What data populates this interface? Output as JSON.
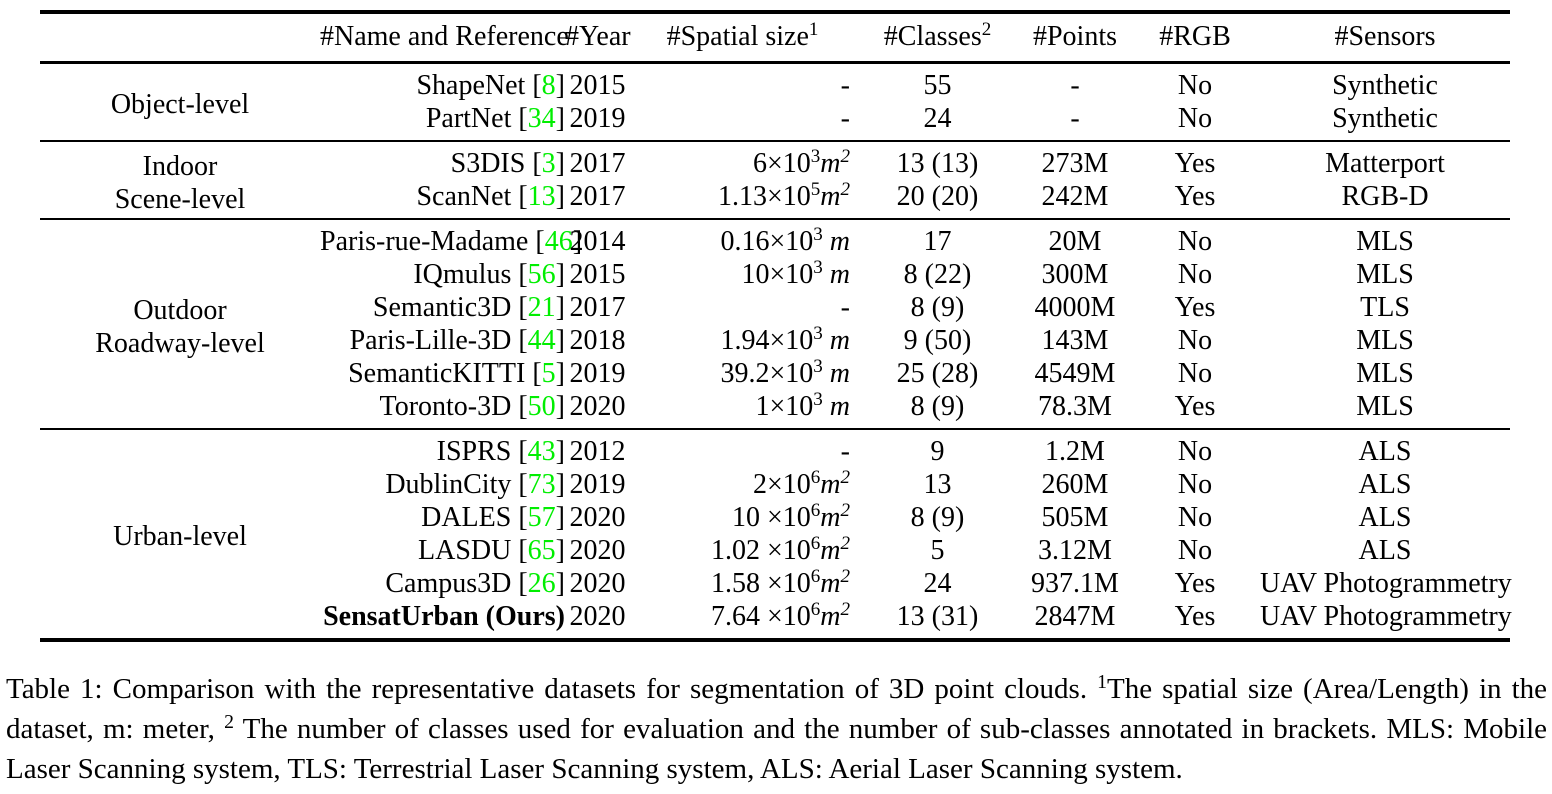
{
  "accent_colors": {
    "citation_green": "#00ee00",
    "text": "#000000",
    "background": "#ffffff"
  },
  "table": {
    "citation": {
      "open": " [",
      "close": "]"
    },
    "columns": [
      {
        "key": "category",
        "label": ""
      },
      {
        "key": "name",
        "label": "#Name and Reference"
      },
      {
        "key": "year",
        "label": "#Year"
      },
      {
        "key": "spatial",
        "label": "#Spatial size",
        "sup": "1"
      },
      {
        "key": "classes",
        "label": "#Classes",
        "sup": "2"
      },
      {
        "key": "points",
        "label": "#Points"
      },
      {
        "key": "rgb",
        "label": "#RGB"
      },
      {
        "key": "sensors",
        "label": "#Sensors"
      }
    ],
    "groups": [
      {
        "category_lines": [
          "Object-level"
        ],
        "rows": [
          {
            "name": "ShapeNet",
            "ref": "8",
            "year": "2015",
            "spatial": {
              "dash": "-"
            },
            "classes": "55",
            "points": "-",
            "rgb": "No",
            "sensors": "Synthetic"
          },
          {
            "name": "PartNet",
            "ref": "34",
            "year": "2019",
            "spatial": {
              "dash": "-"
            },
            "classes": "24",
            "points": "-",
            "rgb": "No",
            "sensors": "Synthetic"
          }
        ]
      },
      {
        "category_lines": [
          "Indoor",
          "Scene-level"
        ],
        "rows": [
          {
            "name": "S3DIS",
            "ref": "3",
            "year": "2017",
            "spatial": {
              "coeff": "6×10",
              "exp": "3",
              "unit": "m",
              "unit_sup": "2"
            },
            "classes": "13 (13)",
            "points": "273M",
            "rgb": "Yes",
            "sensors": "Matterport"
          },
          {
            "name": "ScanNet",
            "ref": "13",
            "year": "2017",
            "spatial": {
              "coeff": "1.13×10",
              "exp": "5",
              "unit": "m",
              "unit_sup": "2"
            },
            "classes": "20 (20)",
            "points": "242M",
            "rgb": "Yes",
            "sensors": "RGB-D"
          }
        ]
      },
      {
        "category_lines": [
          "Outdoor",
          "Roadway-level"
        ],
        "rows": [
          {
            "name": "Paris-rue-Madame",
            "ref": "46",
            "year": "2014",
            "spatial": {
              "coeff": "0.16×10",
              "exp": "3",
              "unit": " m"
            },
            "classes": "17",
            "points": "20M",
            "rgb": "No",
            "sensors": "MLS"
          },
          {
            "name": "IQmulus",
            "ref": "56",
            "year": "2015",
            "spatial": {
              "coeff": "10×10",
              "exp": "3",
              "unit": " m"
            },
            "classes": "8 (22)",
            "points": "300M",
            "rgb": "No",
            "sensors": "MLS"
          },
          {
            "name": "Semantic3D",
            "ref": "21",
            "year": "2017",
            "spatial": {
              "dash": "-"
            },
            "classes": "8 (9)",
            "points": "4000M",
            "rgb": "Yes",
            "sensors": "TLS"
          },
          {
            "name": "Paris-Lille-3D",
            "ref": "44",
            "year": "2018",
            "spatial": {
              "coeff": "1.94×10",
              "exp": "3",
              "unit": " m"
            },
            "classes": "9 (50)",
            "points": "143M",
            "rgb": "No",
            "sensors": "MLS"
          },
          {
            "name": "SemanticKITTI",
            "ref": "5",
            "year": "2019",
            "spatial": {
              "coeff": "39.2×10",
              "exp": "3",
              "unit": " m"
            },
            "classes": "25 (28)",
            "points": "4549M",
            "rgb": "No",
            "sensors": "MLS"
          },
          {
            "name": "Toronto-3D",
            "ref": "50",
            "year": "2020",
            "spatial": {
              "coeff": "1×10",
              "exp": "3",
              "unit": " m"
            },
            "classes": "8 (9)",
            "points": "78.3M",
            "rgb": "Yes",
            "sensors": "MLS"
          }
        ]
      },
      {
        "category_lines": [
          "Urban-level"
        ],
        "rows": [
          {
            "name": "ISPRS",
            "ref": "43",
            "year": "2012",
            "spatial": {
              "dash": "-"
            },
            "classes": "9",
            "points": "1.2M",
            "rgb": "No",
            "sensors": "ALS"
          },
          {
            "name": "DublinCity",
            "ref": "73",
            "year": "2019",
            "spatial": {
              "coeff": "2×10",
              "exp": "6",
              "unit": "m",
              "unit_sup": "2"
            },
            "classes": "13",
            "points": "260M",
            "rgb": "No",
            "sensors": "ALS"
          },
          {
            "name": "DALES",
            "ref": "57",
            "year": "2020",
            "spatial": {
              "coeff": "10 ×10",
              "exp": "6",
              "unit": "m",
              "unit_sup": "2"
            },
            "classes": "8 (9)",
            "points": "505M",
            "rgb": "No",
            "sensors": "ALS"
          },
          {
            "name": "LASDU",
            "ref": "65",
            "year": "2020",
            "spatial": {
              "coeff": "1.02 ×10",
              "exp": "6",
              "unit": "m",
              "unit_sup": "2"
            },
            "classes": "5",
            "points": "3.12M",
            "rgb": "No",
            "sensors": "ALS"
          },
          {
            "name": "Campus3D",
            "ref": "26",
            "year": "2020",
            "spatial": {
              "coeff": "1.58 ×10",
              "exp": "6",
              "unit": "m",
              "unit_sup": "2"
            },
            "classes": "24",
            "points": "937.1M",
            "rgb": "Yes",
            "sensors": "UAV Photogrammetry"
          },
          {
            "name": "SensatUrban (Ours)",
            "ref": null,
            "bold": true,
            "year": "2020",
            "spatial": {
              "coeff": "7.64 ×10",
              "exp": "6",
              "unit": "m",
              "unit_sup": "2"
            },
            "classes": "13 (31)",
            "points": "2847M",
            "rgb": "Yes",
            "sensors": "UAV Photogrammetry"
          }
        ]
      }
    ]
  },
  "caption": {
    "segments": [
      {
        "text": "Table 1: Comparison with the representative datasets for segmentation of 3D point clouds. "
      },
      {
        "text": "1",
        "sup": true
      },
      {
        "text": "The spatial size (Area/Length) in the dataset, m: meter, "
      },
      {
        "text": "2",
        "sup": true
      },
      {
        "text": " The number of classes used for evaluation and the number of sub-classes annotated in brackets. MLS: Mobile Laser Scanning system, TLS: Terrestrial Laser Scanning system, ALS: Aerial Laser Scanning system."
      }
    ]
  }
}
